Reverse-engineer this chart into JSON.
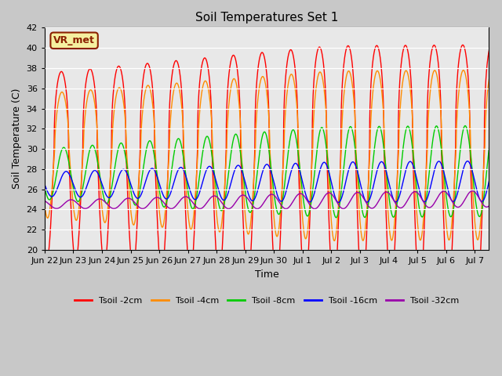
{
  "title": "Soil Temperatures Set 1",
  "xlabel": "Time",
  "ylabel": "Soil Temperature (C)",
  "ylim": [
    20,
    42
  ],
  "xlim": [
    0,
    15.5
  ],
  "bg_color": "#e8e8e8",
  "fig_bg_color": "#c8c8c8",
  "annotation_text": "VR_met",
  "annotation_bg": "#f5f0a0",
  "annotation_border": "#8b2000",
  "annotation_text_color": "#8b2000",
  "series_colors": {
    "Tsoil -2cm": "#ff0000",
    "Tsoil -4cm": "#ff8c00",
    "Tsoil -8cm": "#00cc00",
    "Tsoil -16cm": "#0000ff",
    "Tsoil -32cm": "#9900aa"
  },
  "xtick_labels": [
    "Jun 22",
    "Jun 23",
    "Jun 24",
    "Jun 25",
    "Jun 26",
    "Jun 27",
    "Jun 28",
    "Jun 29",
    "Jun 30",
    "Jul 1",
    "Jul 2",
    "Jul 3",
    "Jul 4",
    "Jul 5",
    "Jul 6",
    "Jul 7"
  ],
  "yticks": [
    20,
    22,
    24,
    26,
    28,
    30,
    32,
    34,
    36,
    38,
    40,
    42
  ],
  "title_fontsize": 11,
  "axis_label_fontsize": 9,
  "tick_fontsize": 8
}
